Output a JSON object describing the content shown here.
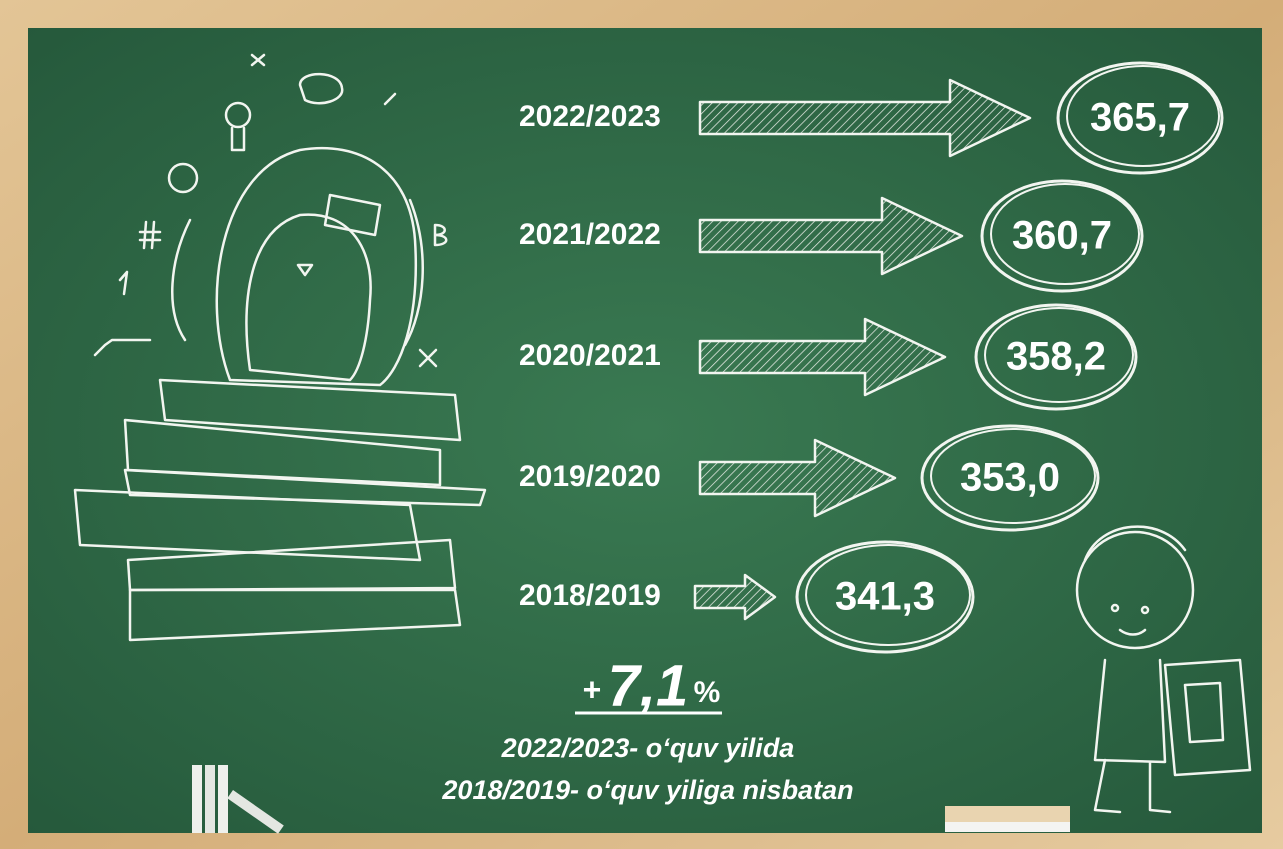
{
  "rows": [
    {
      "year": "2022/2023",
      "value": "365,7"
    },
    {
      "year": "2021/2022",
      "value": "360,7"
    },
    {
      "year": "2020/2021",
      "value": "358,2"
    },
    {
      "year": "2019/2020",
      "value": "353,0"
    },
    {
      "year": "2018/2019",
      "value": "341,3"
    }
  ],
  "change": {
    "sign": "+",
    "number": "7,1",
    "unit": "%"
  },
  "caption": [
    "2022/2023- oʻquv yilida",
    "2018/2019- oʻquv yiliga nisbatan"
  ]
}
